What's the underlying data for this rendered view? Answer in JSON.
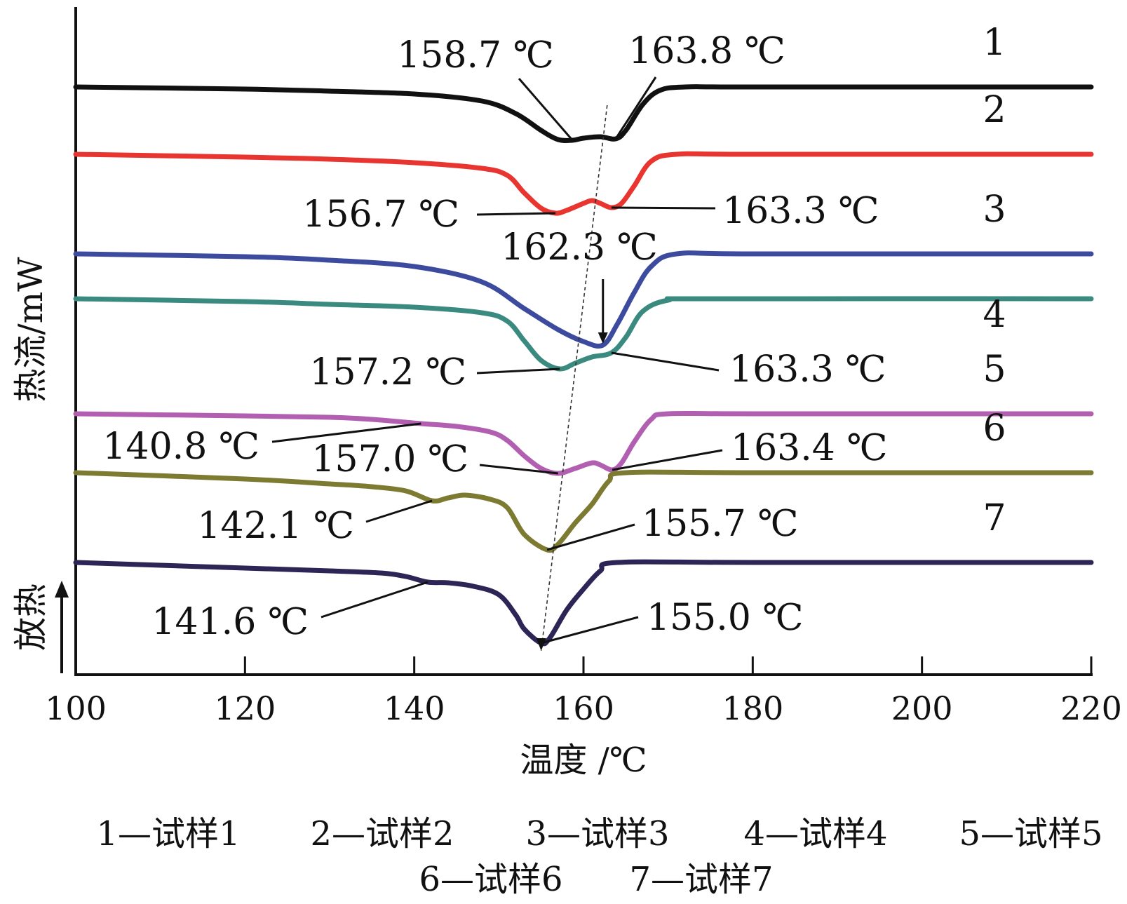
{
  "chart_data": {
    "type": "line",
    "xlabel": "温度 /℃",
    "ylabel": "热流/mW",
    "exo_label": "放热",
    "xlim": [
      100,
      220
    ],
    "x_ticks": [
      "100",
      "120",
      "140",
      "160",
      "180",
      "200",
      "220"
    ],
    "series": [
      {
        "name": "1",
        "color": "#111111",
        "points": [
          [
            100,
            0.0
          ],
          [
            120,
            -0.03
          ],
          [
            130,
            -0.06
          ],
          [
            140,
            -0.1
          ],
          [
            148,
            -0.2
          ],
          [
            152,
            -0.38
          ],
          [
            155,
            -0.62
          ],
          [
            157,
            -0.75
          ],
          [
            158.7,
            -0.76
          ],
          [
            160,
            -0.73
          ],
          [
            162,
            -0.71
          ],
          [
            163.8,
            -0.74
          ],
          [
            165,
            -0.62
          ],
          [
            167,
            -0.25
          ],
          [
            169,
            -0.05
          ],
          [
            172,
            0.0
          ],
          [
            180,
            0.0
          ],
          [
            220,
            0.0
          ]
        ]
      },
      {
        "name": "2",
        "color": "#e8352f",
        "points": [
          [
            100,
            0.0
          ],
          [
            120,
            -0.04
          ],
          [
            130,
            -0.07
          ],
          [
            140,
            -0.12
          ],
          [
            148,
            -0.2
          ],
          [
            151,
            -0.3
          ],
          [
            153,
            -0.55
          ],
          [
            155,
            -0.77
          ],
          [
            156.7,
            -0.84
          ],
          [
            158,
            -0.8
          ],
          [
            160,
            -0.7
          ],
          [
            161,
            -0.66
          ],
          [
            162,
            -0.7
          ],
          [
            163.3,
            -0.76
          ],
          [
            164.5,
            -0.7
          ],
          [
            166,
            -0.45
          ],
          [
            168,
            -0.1
          ],
          [
            171,
            0.0
          ],
          [
            180,
            0.0
          ],
          [
            220,
            0.0
          ]
        ]
      },
      {
        "name": "3",
        "color": "#3d4b9e",
        "points": [
          [
            100,
            0.0
          ],
          [
            120,
            -0.04
          ],
          [
            130,
            -0.09
          ],
          [
            140,
            -0.18
          ],
          [
            148,
            -0.4
          ],
          [
            153,
            -0.78
          ],
          [
            157,
            -1.08
          ],
          [
            160,
            -1.25
          ],
          [
            162.3,
            -1.3
          ],
          [
            164,
            -1.0
          ],
          [
            166,
            -0.55
          ],
          [
            168,
            -0.18
          ],
          [
            171,
            0.0
          ],
          [
            180,
            0.0
          ],
          [
            220,
            0.0
          ]
        ]
      },
      {
        "name": "4",
        "color": "#3a8a80",
        "points": [
          [
            100,
            0.0
          ],
          [
            120,
            -0.04
          ],
          [
            130,
            -0.08
          ],
          [
            140,
            -0.12
          ],
          [
            148,
            -0.2
          ],
          [
            151,
            -0.32
          ],
          [
            153,
            -0.6
          ],
          [
            155,
            -0.88
          ],
          [
            157.2,
            -1.0
          ],
          [
            159,
            -0.92
          ],
          [
            161,
            -0.83
          ],
          [
            163.3,
            -0.77
          ],
          [
            165,
            -0.55
          ],
          [
            167,
            -0.18
          ],
          [
            170,
            -0.02
          ],
          [
            175,
            0.0
          ],
          [
            220,
            0.0
          ]
        ]
      },
      {
        "name": "5",
        "color": "#b25fb1",
        "points": [
          [
            100,
            0.0
          ],
          [
            120,
            -0.03
          ],
          [
            130,
            -0.05
          ],
          [
            135,
            -0.08
          ],
          [
            140.8,
            -0.14
          ],
          [
            145,
            -0.18
          ],
          [
            149,
            -0.26
          ],
          [
            151,
            -0.38
          ],
          [
            153,
            -0.6
          ],
          [
            155,
            -0.78
          ],
          [
            157,
            -0.85
          ],
          [
            159,
            -0.78
          ],
          [
            161,
            -0.7
          ],
          [
            162,
            -0.73
          ],
          [
            163.4,
            -0.8
          ],
          [
            164.5,
            -0.7
          ],
          [
            166,
            -0.4
          ],
          [
            168,
            -0.08
          ],
          [
            170,
            0.0
          ],
          [
            180,
            0.0
          ],
          [
            220,
            0.0
          ]
        ]
      },
      {
        "name": "6",
        "color": "#7d7a32",
        "points": [
          [
            100,
            0.0
          ],
          [
            120,
            -0.09
          ],
          [
            130,
            -0.16
          ],
          [
            135,
            -0.2
          ],
          [
            139,
            -0.26
          ],
          [
            142.1,
            -0.4
          ],
          [
            144,
            -0.36
          ],
          [
            146,
            -0.32
          ],
          [
            149,
            -0.38
          ],
          [
            151,
            -0.5
          ],
          [
            153,
            -0.88
          ],
          [
            155.7,
            -1.1
          ],
          [
            157,
            -1.02
          ],
          [
            159,
            -0.72
          ],
          [
            161,
            -0.45
          ],
          [
            163,
            -0.12
          ],
          [
            165,
            0.0
          ],
          [
            180,
            0.0
          ],
          [
            220,
            0.0
          ]
        ]
      },
      {
        "name": "7",
        "color": "#2c2556",
        "points": [
          [
            100,
            0.0
          ],
          [
            120,
            -0.08
          ],
          [
            130,
            -0.12
          ],
          [
            136,
            -0.15
          ],
          [
            139,
            -0.2
          ],
          [
            141.6,
            -0.28
          ],
          [
            144,
            -0.29
          ],
          [
            147,
            -0.34
          ],
          [
            150,
            -0.46
          ],
          [
            152,
            -0.75
          ],
          [
            153,
            -0.95
          ],
          [
            155,
            -1.15
          ],
          [
            156,
            -1.08
          ],
          [
            158,
            -0.68
          ],
          [
            160,
            -0.38
          ],
          [
            162,
            -0.12
          ],
          [
            164,
            0.0
          ],
          [
            180,
            0.0
          ],
          [
            220,
            0.0
          ]
        ]
      }
    ],
    "annotations": [
      {
        "series": "1",
        "x": 158.7,
        "text": "158.7 ℃"
      },
      {
        "series": "1",
        "x": 163.8,
        "text": "163.8 ℃"
      },
      {
        "series": "2",
        "x": 156.7,
        "text": "156.7 ℃"
      },
      {
        "series": "2",
        "x": 163.3,
        "text": "163.3 ℃"
      },
      {
        "series": "3",
        "x": 162.3,
        "text": "162.3 ℃"
      },
      {
        "series": "4",
        "x": 157.2,
        "text": "157.2 ℃"
      },
      {
        "series": "4",
        "x": 163.3,
        "text": "163.3 ℃"
      },
      {
        "series": "5",
        "x": 140.8,
        "text": "140.8 ℃"
      },
      {
        "series": "5",
        "x": 157.0,
        "text": "157.0 ℃"
      },
      {
        "series": "5",
        "x": 163.4,
        "text": "163.4 ℃"
      },
      {
        "series": "6",
        "x": 142.1,
        "text": "142.1 ℃"
      },
      {
        "series": "6",
        "x": 155.7,
        "text": "155.7 ℃"
      },
      {
        "series": "7",
        "x": 141.6,
        "text": "141.6 ℃"
      },
      {
        "series": "7",
        "x": 155.0,
        "text": "155.0 ℃"
      }
    ],
    "trend_line": {
      "from_x": 162.8,
      "to_x": 155.0
    },
    "legend": {
      "rows": [
        [
          "1—试样1",
          "2—试样2",
          "3—试样3",
          "4—试样4",
          "5—试样5"
        ],
        [
          "6—试样6",
          "7—试样7"
        ]
      ]
    }
  }
}
